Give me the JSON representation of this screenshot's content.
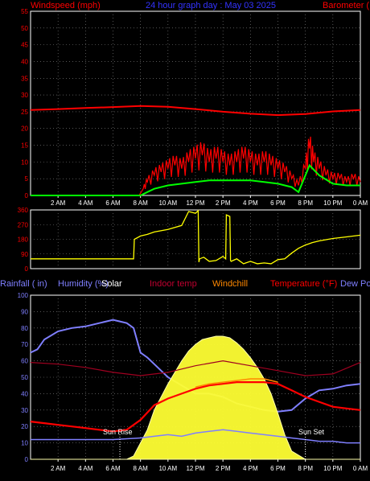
{
  "header": {
    "left": "Windspeed (mph)",
    "center": "24 hour graph day : May 03 2025",
    "right": "Barometer ("
  },
  "legend": {
    "rainfall": "Rainfall ( in)",
    "humidity": "Humidity (%)",
    "solar": "Solar",
    "indoor": "Indoor temp",
    "windchill": "Windchill",
    "temperature": "Temperature (°F)",
    "dewpoint": "Dew Po"
  },
  "annotations": {
    "sunrise": "Sun Rise",
    "sunset": "Sun Set"
  },
  "colors": {
    "windspeed": "#ff0000",
    "windavg": "#00ff00",
    "barometer": "#ff0000",
    "direction": "#ffff00",
    "humidity": "#7f7fff",
    "solar": "#ffff33",
    "indoor": "#a00020",
    "windchill": "#ff8800",
    "temperature": "#ff0000",
    "dewpoint": "#7f7fff",
    "axis_left_upper": "#ff0000",
    "axis_left_lower": "#7f7fff"
  },
  "chart_data": [
    {
      "type": "line",
      "title": "24 hour graph day : May 03 2025",
      "ylabel": "Windspeed (mph)",
      "x_ticks": [
        "2 AM",
        "4 AM",
        "6 AM",
        "8 AM",
        "10 AM",
        "12 PM",
        "2 PM",
        "4 PM",
        "6 PM",
        "8 PM",
        "10 PM",
        "0 AM"
      ],
      "y_ticks": [
        0,
        5,
        10,
        15,
        20,
        25,
        30,
        35,
        40,
        45,
        50,
        55
      ],
      "ylim": [
        0,
        55
      ],
      "xlim": [
        0,
        24
      ],
      "grid": true,
      "series": [
        {
          "name": "Windspeed (mph)",
          "x": [
            0,
            7.9,
            8.2,
            8.5,
            9,
            9.5,
            10,
            10.5,
            11,
            11.5,
            12,
            12.5,
            13,
            13.5,
            14,
            14.5,
            15,
            15.5,
            16,
            16.5,
            17,
            17.5,
            18,
            18.5,
            19,
            19.5,
            20,
            20.3,
            20.6,
            21,
            21.5,
            22,
            22.5,
            23,
            23.5,
            24
          ],
          "values": [
            0,
            0,
            2,
            4,
            6,
            7,
            8,
            9,
            8,
            10,
            11,
            12,
            10,
            11,
            10,
            9,
            10,
            11,
            10,
            9,
            10,
            9,
            8,
            7,
            5,
            3,
            8,
            14,
            10,
            8,
            6,
            5,
            5,
            4,
            5,
            4
          ]
        },
        {
          "name": "Wind average",
          "x": [
            0,
            8,
            8.5,
            9,
            10,
            11,
            12,
            13,
            14,
            15,
            16,
            17,
            18,
            19,
            19.5,
            20,
            20.3,
            21,
            22,
            23,
            24
          ],
          "values": [
            0,
            0,
            1,
            2,
            3,
            3.5,
            4,
            4.5,
            4.5,
            4.5,
            4.5,
            4,
            3.5,
            2.5,
            1,
            6,
            9,
            6,
            3.5,
            3,
            3
          ]
        },
        {
          "name": "Barometer",
          "x": [
            0,
            2,
            4,
            6,
            8,
            10,
            12,
            14,
            16,
            18,
            20,
            22,
            24
          ],
          "values": [
            25.5,
            25.8,
            26.1,
            26.4,
            26.7,
            26.5,
            25.8,
            25.0,
            24.4,
            24.0,
            24.3,
            25.1,
            25.5
          ]
        }
      ]
    },
    {
      "type": "line",
      "ylabel": "Wind direction",
      "y_ticks": [
        0,
        90,
        180,
        270,
        360
      ],
      "ylim": [
        0,
        360
      ],
      "xlim": [
        0,
        24
      ],
      "grid": true,
      "series": [
        {
          "name": "Wind direction",
          "x": [
            0,
            7.5,
            7.55,
            8,
            8.5,
            9,
            10,
            11,
            11.5,
            12,
            12.2,
            12.25,
            12.3,
            12.6,
            13,
            13.5,
            14,
            14.2,
            14.25,
            14.5,
            14.55,
            14.6,
            15,
            15.5,
            16,
            16.5,
            17,
            17.5,
            18,
            18.5,
            19,
            19.5,
            20,
            20.5,
            21,
            22,
            23,
            24
          ],
          "values": [
            60,
            60,
            180,
            200,
            210,
            225,
            240,
            265,
            350,
            340,
            355,
            40,
            60,
            70,
            45,
            50,
            75,
            60,
            330,
            320,
            50,
            45,
            60,
            30,
            45,
            30,
            35,
            30,
            55,
            60,
            95,
            125,
            145,
            160,
            170,
            185,
            195,
            205
          ]
        }
      ]
    },
    {
      "type": "line",
      "ylabel": "Humidity (%)",
      "x_ticks": [
        "2 AM",
        "4 AM",
        "6 AM",
        "8 AM",
        "10 AM",
        "12 PM",
        "2 PM",
        "4 PM",
        "6 PM",
        "8 PM",
        "10 PM",
        "0 AM"
      ],
      "y_ticks": [
        0,
        10,
        20,
        30,
        40,
        50,
        60,
        70,
        80,
        90,
        100
      ],
      "ylim": [
        0,
        100
      ],
      "xlim": [
        0,
        24
      ],
      "grid": true,
      "series": [
        {
          "name": "Humidity (%)",
          "x": [
            0,
            0.5,
            1,
            2,
            3,
            4,
            5,
            6,
            6.5,
            7,
            7.5,
            8,
            8.5,
            9,
            10,
            11,
            12,
            13,
            14,
            15,
            16,
            17,
            18,
            19,
            20,
            21,
            22,
            23,
            24
          ],
          "values": [
            65,
            67,
            73,
            78,
            80,
            81,
            83,
            85,
            84,
            83,
            80,
            65,
            62,
            58,
            50,
            45,
            40,
            40,
            38,
            34,
            32,
            30,
            29,
            30,
            37,
            42,
            43,
            45,
            46
          ]
        },
        {
          "name": "Solar",
          "x": [
            0,
            6,
            7,
            7.5,
            8,
            8.5,
            9,
            10,
            11,
            11.5,
            12,
            12.5,
            13,
            13.5,
            14,
            14.5,
            15,
            15.5,
            16,
            16.5,
            17,
            17.5,
            18,
            18.5,
            19,
            20,
            24
          ],
          "values": [
            0,
            0,
            0,
            2,
            10,
            18,
            30,
            46,
            60,
            66,
            70,
            73,
            74,
            75,
            75,
            74,
            71,
            67,
            62,
            56,
            49,
            40,
            28,
            15,
            5,
            0,
            0
          ]
        },
        {
          "name": "Indoor temp",
          "x": [
            0,
            2,
            4,
            6,
            8,
            10,
            12,
            14,
            16,
            18,
            20,
            22,
            24
          ],
          "values": [
            59,
            58,
            56,
            53,
            51,
            53,
            57,
            60,
            57,
            54,
            51,
            52,
            59
          ]
        },
        {
          "name": "Windchill",
          "x": [
            12,
            13,
            14,
            15,
            16,
            17,
            18
          ],
          "values": [
            44,
            46,
            47,
            48,
            49,
            49,
            47
          ]
        },
        {
          "name": "Temperature (°F)",
          "x": [
            0,
            1,
            2,
            3,
            4,
            5,
            6,
            7,
            8,
            9,
            10,
            11,
            12,
            13,
            14,
            15,
            16,
            17,
            18,
            19,
            20,
            21,
            22,
            23,
            24
          ],
          "values": [
            23,
            22,
            21,
            20,
            19,
            18,
            17,
            18,
            24,
            33,
            37,
            40,
            43,
            45,
            46,
            47,
            47,
            47,
            46,
            42,
            38,
            35,
            32,
            31,
            30
          ]
        },
        {
          "name": "Dew Point",
          "x": [
            0,
            2,
            4,
            6,
            8,
            9,
            10,
            11,
            12,
            13,
            14,
            15,
            16,
            17,
            18,
            19,
            20,
            21,
            22,
            23,
            24
          ],
          "values": [
            12,
            12,
            12,
            12,
            13,
            14,
            15,
            14,
            16,
            17,
            18,
            17,
            16,
            15,
            14,
            13,
            12,
            11,
            11,
            10,
            10
          ]
        }
      ]
    }
  ]
}
